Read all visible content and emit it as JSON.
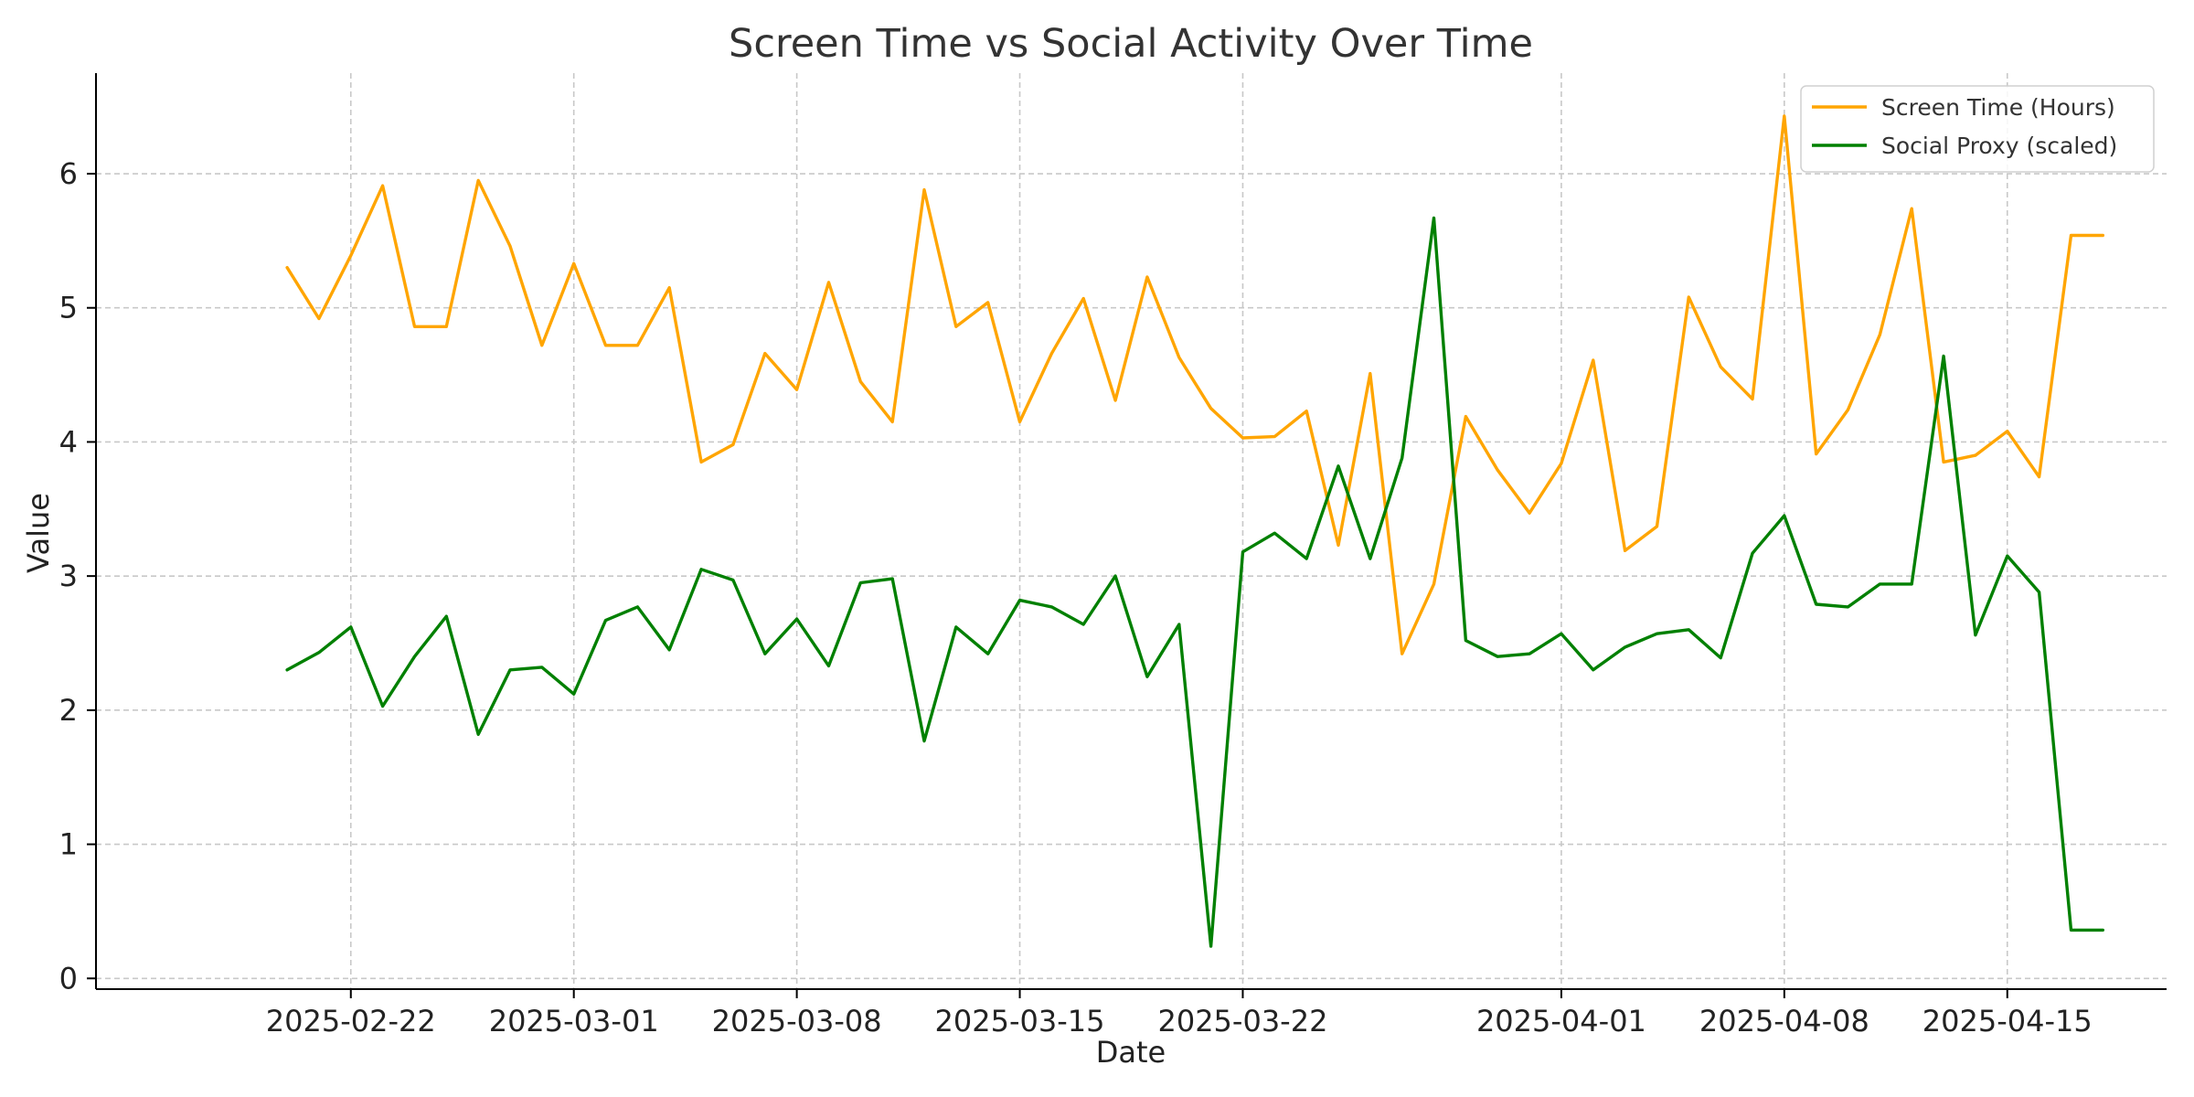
{
  "chart_data": {
    "type": "line",
    "title": "Screen Time vs Social Activity Over Time",
    "xlabel": "Date",
    "ylabel": "Value",
    "xlim": [
      "2025-02-14",
      "2025-04-20"
    ],
    "ylim": [
      -0.08,
      6.75
    ],
    "x_ticks": [
      "2025-02-22",
      "2025-03-01",
      "2025-03-08",
      "2025-03-15",
      "2025-03-22",
      "2025-04-01",
      "2025-04-08",
      "2025-04-15"
    ],
    "y_ticks": [
      0,
      1,
      2,
      3,
      4,
      5,
      6
    ],
    "grid": true,
    "legend_position": "top-right",
    "x": [
      "2025-02-20",
      "2025-02-21",
      "2025-02-22",
      "2025-02-23",
      "2025-02-24",
      "2025-02-25",
      "2025-02-26",
      "2025-02-27",
      "2025-02-28",
      "2025-03-01",
      "2025-03-02",
      "2025-03-03",
      "2025-03-04",
      "2025-03-05",
      "2025-03-06",
      "2025-03-07",
      "2025-03-08",
      "2025-03-09",
      "2025-03-10",
      "2025-03-11",
      "2025-03-12",
      "2025-03-13",
      "2025-03-14",
      "2025-03-15",
      "2025-03-16",
      "2025-03-17",
      "2025-03-18",
      "2025-03-19",
      "2025-03-20",
      "2025-03-21",
      "2025-03-22",
      "2025-03-23",
      "2025-03-24",
      "2025-03-25",
      "2025-03-26",
      "2025-03-27",
      "2025-03-28",
      "2025-03-29",
      "2025-03-30",
      "2025-03-31",
      "2025-04-01",
      "2025-04-02",
      "2025-04-03",
      "2025-04-04",
      "2025-04-05",
      "2025-04-06",
      "2025-04-07",
      "2025-04-08",
      "2025-04-09",
      "2025-04-10",
      "2025-04-11",
      "2025-04-12",
      "2025-04-13",
      "2025-04-14",
      "2025-04-15",
      "2025-04-16",
      "2025-04-17",
      "2025-04-18"
    ],
    "series": [
      {
        "name": "Screen Time (Hours)",
        "color": "#ffa500",
        "values": [
          5.3,
          4.92,
          5.39,
          5.91,
          4.86,
          4.86,
          5.95,
          5.46,
          4.72,
          5.33,
          4.72,
          4.72,
          5.15,
          3.85,
          3.98,
          4.66,
          4.39,
          5.19,
          4.45,
          4.15,
          5.88,
          4.86,
          5.04,
          4.15,
          4.66,
          5.07,
          4.31,
          5.23,
          4.63,
          4.25,
          4.03,
          4.04,
          4.23,
          3.23,
          4.51,
          2.42,
          2.94,
          4.19,
          3.79,
          3.47,
          3.84,
          4.61,
          3.19,
          3.37,
          5.08,
          4.56,
          4.32,
          6.43,
          3.91,
          4.24,
          4.8,
          5.74,
          3.85,
          3.9,
          4.08,
          3.74,
          5.54,
          5.54
        ]
      },
      {
        "name": "Social Proxy (scaled)",
        "color": "#008000",
        "values": [
          2.3,
          2.43,
          2.62,
          2.03,
          2.4,
          2.7,
          1.82,
          2.3,
          2.32,
          2.12,
          2.67,
          2.77,
          2.45,
          3.05,
          2.97,
          2.42,
          2.68,
          2.33,
          2.95,
          2.98,
          1.77,
          2.62,
          2.42,
          2.82,
          2.77,
          2.64,
          3.0,
          2.25,
          2.64,
          0.24,
          3.18,
          3.32,
          3.13,
          3.82,
          3.13,
          3.88,
          5.67,
          2.52,
          2.4,
          2.42,
          2.57,
          2.3,
          2.47,
          2.57,
          2.6,
          2.39,
          3.17,
          3.45,
          2.79,
          2.77,
          2.94,
          2.94,
          4.64,
          2.56,
          3.15,
          2.88,
          0.36,
          0.36
        ]
      }
    ]
  }
}
